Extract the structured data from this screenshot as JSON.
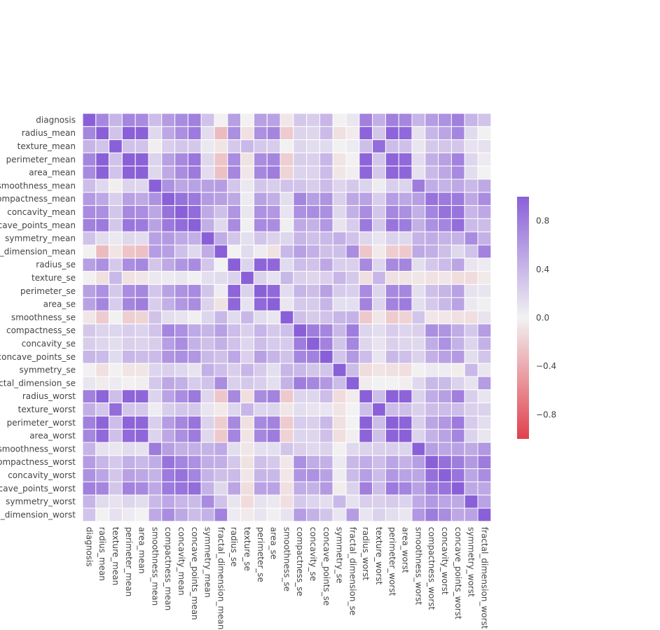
{
  "chart_data": {
    "type": "heatmap",
    "title": "",
    "xlabel": "",
    "ylabel": "",
    "grid": false,
    "legend": "colorbar-right",
    "labels": [
      "diagnosis",
      "radius_mean",
      "texture_mean",
      "perimeter_mean",
      "area_mean",
      "smoothness_mean",
      "compactness_mean",
      "concavity_mean",
      "concave_points_mean",
      "symmetry_mean",
      "fractal_dimension_mean",
      "radius_se",
      "texture_se",
      "perimeter_se",
      "area_se",
      "smoothness_se",
      "compactness_se",
      "concavity_se",
      "concave_points_se",
      "symmetry_se",
      "fractal_dimension_se",
      "radius_worst",
      "texture_worst",
      "perimeter_worst",
      "area_worst",
      "smoothness_worst",
      "compactness_worst",
      "concavity_worst",
      "concave_points_worst",
      "symmetry_worst",
      "fractal_dimension_worst"
    ],
    "values": [
      [
        1.0,
        0.73,
        0.42,
        0.74,
        0.71,
        0.36,
        0.6,
        0.7,
        0.78,
        0.33,
        -0.01,
        0.57,
        -0.01,
        0.56,
        0.55,
        -0.07,
        0.29,
        0.25,
        0.41,
        -0.01,
        0.08,
        0.78,
        0.46,
        0.78,
        0.73,
        0.42,
        0.59,
        0.66,
        0.79,
        0.42,
        0.32
      ],
      [
        0.73,
        1.0,
        0.32,
        1.0,
        0.99,
        0.17,
        0.51,
        0.68,
        0.82,
        0.15,
        -0.31,
        0.68,
        -0.1,
        0.67,
        0.74,
        -0.22,
        0.21,
        0.19,
        0.38,
        -0.1,
        -0.04,
        0.97,
        0.3,
        0.97,
        0.94,
        0.12,
        0.41,
        0.53,
        0.74,
        0.16,
        0.01
      ],
      [
        0.42,
        0.32,
        1.0,
        0.33,
        0.32,
        -0.02,
        0.24,
        0.3,
        0.29,
        0.07,
        -0.08,
        0.28,
        0.39,
        0.28,
        0.26,
        0.01,
        0.19,
        0.14,
        0.16,
        0.01,
        0.05,
        0.35,
        0.91,
        0.36,
        0.34,
        0.08,
        0.28,
        0.3,
        0.3,
        0.11,
        0.12
      ],
      [
        0.74,
        1.0,
        0.33,
        1.0,
        0.99,
        0.21,
        0.56,
        0.72,
        0.85,
        0.18,
        -0.26,
        0.69,
        -0.09,
        0.69,
        0.74,
        -0.2,
        0.25,
        0.23,
        0.41,
        -0.08,
        -0.01,
        0.97,
        0.3,
        0.97,
        0.94,
        0.15,
        0.46,
        0.56,
        0.77,
        0.19,
        0.05
      ],
      [
        0.71,
        0.99,
        0.32,
        0.99,
        1.0,
        0.18,
        0.5,
        0.69,
        0.82,
        0.15,
        -0.28,
        0.73,
        -0.07,
        0.73,
        0.8,
        -0.17,
        0.21,
        0.21,
        0.37,
        -0.07,
        -0.02,
        0.96,
        0.29,
        0.96,
        0.96,
        0.12,
        0.39,
        0.51,
        0.72,
        0.14,
        0.0
      ],
      [
        0.36,
        0.17,
        -0.02,
        0.21,
        0.18,
        1.0,
        0.66,
        0.52,
        0.55,
        0.56,
        0.58,
        0.3,
        0.07,
        0.3,
        0.25,
        0.33,
        0.32,
        0.25,
        0.38,
        0.2,
        0.28,
        0.21,
        0.04,
        0.24,
        0.21,
        0.81,
        0.47,
        0.43,
        0.5,
        0.39,
        0.5
      ],
      [
        0.6,
        0.51,
        0.24,
        0.56,
        0.5,
        0.66,
        1.0,
        0.88,
        0.83,
        0.6,
        0.57,
        0.5,
        0.05,
        0.55,
        0.46,
        0.14,
        0.74,
        0.57,
        0.64,
        0.23,
        0.51,
        0.54,
        0.25,
        0.59,
        0.51,
        0.57,
        0.87,
        0.82,
        0.82,
        0.51,
        0.69
      ],
      [
        0.7,
        0.68,
        0.3,
        0.72,
        0.69,
        0.52,
        0.88,
        1.0,
        0.92,
        0.5,
        0.34,
        0.63,
        0.08,
        0.66,
        0.62,
        0.1,
        0.67,
        0.69,
        0.68,
        0.18,
        0.45,
        0.69,
        0.3,
        0.73,
        0.68,
        0.45,
        0.75,
        0.88,
        0.86,
        0.41,
        0.51
      ],
      [
        0.78,
        0.82,
        0.29,
        0.85,
        0.82,
        0.55,
        0.83,
        0.92,
        1.0,
        0.46,
        0.17,
        0.7,
        0.02,
        0.71,
        0.69,
        0.03,
        0.49,
        0.44,
        0.62,
        0.1,
        0.26,
        0.83,
        0.29,
        0.86,
        0.81,
        0.45,
        0.67,
        0.75,
        0.91,
        0.38,
        0.37
      ],
      [
        0.33,
        0.15,
        0.07,
        0.18,
        0.15,
        0.56,
        0.6,
        0.5,
        0.46,
        1.0,
        0.48,
        0.3,
        0.13,
        0.31,
        0.22,
        0.19,
        0.42,
        0.34,
        0.39,
        0.45,
        0.33,
        0.19,
        0.09,
        0.22,
        0.18,
        0.43,
        0.47,
        0.43,
        0.43,
        0.7,
        0.44
      ],
      [
        -0.01,
        -0.31,
        -0.08,
        -0.26,
        -0.28,
        0.58,
        0.57,
        0.34,
        0.17,
        0.48,
        1.0,
        0.0,
        0.16,
        0.04,
        -0.09,
        0.4,
        0.56,
        0.45,
        0.34,
        0.35,
        0.69,
        -0.25,
        -0.05,
        -0.21,
        -0.23,
        0.5,
        0.46,
        0.35,
        0.18,
        0.33,
        0.77
      ],
      [
        0.57,
        0.68,
        0.28,
        0.69,
        0.73,
        0.3,
        0.5,
        0.63,
        0.7,
        0.3,
        0.0,
        1.0,
        0.21,
        0.97,
        0.95,
        0.16,
        0.36,
        0.33,
        0.51,
        0.24,
        0.23,
        0.72,
        0.19,
        0.72,
        0.75,
        0.14,
        0.29,
        0.38,
        0.53,
        0.09,
        0.05
      ],
      [
        -0.01,
        -0.1,
        0.39,
        -0.09,
        -0.07,
        0.07,
        0.05,
        0.08,
        0.02,
        0.13,
        0.16,
        0.21,
        1.0,
        0.22,
        0.11,
        0.4,
        0.23,
        0.19,
        0.23,
        0.41,
        0.28,
        -0.11,
        0.41,
        -0.1,
        -0.08,
        -0.07,
        -0.09,
        -0.07,
        -0.12,
        -0.13,
        -0.05
      ],
      [
        0.56,
        0.67,
        0.28,
        0.69,
        0.73,
        0.3,
        0.55,
        0.66,
        0.71,
        0.31,
        0.04,
        0.97,
        0.22,
        1.0,
        0.94,
        0.15,
        0.42,
        0.36,
        0.56,
        0.27,
        0.24,
        0.7,
        0.2,
        0.72,
        0.73,
        0.13,
        0.34,
        0.42,
        0.55,
        0.11,
        0.09
      ],
      [
        0.55,
        0.74,
        0.26,
        0.74,
        0.8,
        0.25,
        0.46,
        0.62,
        0.69,
        0.22,
        -0.09,
        0.95,
        0.11,
        0.94,
        1.0,
        0.08,
        0.28,
        0.27,
        0.42,
        0.13,
        0.13,
        0.76,
        0.2,
        0.76,
        0.81,
        0.13,
        0.28,
        0.39,
        0.54,
        0.07,
        0.02
      ],
      [
        -0.07,
        -0.22,
        0.01,
        -0.2,
        -0.17,
        0.33,
        0.14,
        0.1,
        0.03,
        0.19,
        0.4,
        0.16,
        0.4,
        0.15,
        0.08,
        1.0,
        0.34,
        0.27,
        0.33,
        0.41,
        0.43,
        -0.23,
        -0.07,
        -0.22,
        -0.18,
        0.31,
        -0.06,
        -0.06,
        -0.1,
        -0.11,
        0.1
      ],
      [
        0.29,
        0.21,
        0.19,
        0.25,
        0.21,
        0.32,
        0.74,
        0.67,
        0.49,
        0.42,
        0.56,
        0.36,
        0.23,
        0.42,
        0.28,
        0.34,
        1.0,
        0.8,
        0.74,
        0.39,
        0.8,
        0.2,
        0.14,
        0.26,
        0.2,
        0.23,
        0.68,
        0.64,
        0.48,
        0.28,
        0.59
      ],
      [
        0.25,
        0.19,
        0.14,
        0.23,
        0.21,
        0.25,
        0.57,
        0.69,
        0.44,
        0.34,
        0.45,
        0.33,
        0.19,
        0.36,
        0.27,
        0.27,
        0.8,
        1.0,
        0.77,
        0.31,
        0.73,
        0.19,
        0.1,
        0.23,
        0.19,
        0.17,
        0.48,
        0.66,
        0.44,
        0.2,
        0.44
      ],
      [
        0.41,
        0.38,
        0.16,
        0.41,
        0.37,
        0.38,
        0.64,
        0.68,
        0.62,
        0.39,
        0.34,
        0.51,
        0.23,
        0.56,
        0.42,
        0.33,
        0.74,
        0.77,
        1.0,
        0.31,
        0.61,
        0.36,
        0.09,
        0.39,
        0.34,
        0.22,
        0.45,
        0.55,
        0.6,
        0.14,
        0.31
      ],
      [
        -0.01,
        -0.1,
        0.01,
        -0.08,
        -0.07,
        0.2,
        0.23,
        0.18,
        0.1,
        0.45,
        0.35,
        0.24,
        0.41,
        0.27,
        0.13,
        0.41,
        0.39,
        0.31,
        0.31,
        1.0,
        0.37,
        -0.13,
        -0.08,
        -0.1,
        -0.11,
        -0.01,
        0.06,
        0.04,
        -0.03,
        0.39,
        0.08
      ],
      [
        0.08,
        -0.04,
        0.05,
        -0.01,
        -0.02,
        0.28,
        0.51,
        0.45,
        0.26,
        0.33,
        0.69,
        0.23,
        0.28,
        0.24,
        0.13,
        0.43,
        0.8,
        0.73,
        0.61,
        0.37,
        1.0,
        -0.04,
        -0.0,
        -0.0,
        -0.02,
        0.17,
        0.39,
        0.38,
        0.22,
        0.11,
        0.59
      ],
      [
        0.78,
        0.97,
        0.35,
        0.97,
        0.96,
        0.21,
        0.54,
        0.69,
        0.83,
        0.19,
        -0.25,
        0.72,
        -0.11,
        0.7,
        0.76,
        -0.23,
        0.2,
        0.19,
        0.36,
        -0.13,
        -0.04,
        1.0,
        0.36,
        0.99,
        0.98,
        0.22,
        0.48,
        0.57,
        0.79,
        0.24,
        0.09
      ],
      [
        0.46,
        0.3,
        0.91,
        0.3,
        0.29,
        0.04,
        0.25,
        0.3,
        0.29,
        0.09,
        -0.05,
        0.19,
        0.41,
        0.2,
        0.2,
        -0.07,
        0.14,
        0.1,
        0.09,
        -0.08,
        -0.0,
        0.36,
        1.0,
        0.37,
        0.35,
        0.23,
        0.36,
        0.37,
        0.36,
        0.23,
        0.22
      ],
      [
        0.78,
        0.97,
        0.36,
        0.97,
        0.96,
        0.24,
        0.59,
        0.73,
        0.86,
        0.22,
        -0.21,
        0.72,
        -0.1,
        0.72,
        0.76,
        -0.22,
        0.26,
        0.23,
        0.39,
        -0.1,
        -0.0,
        0.99,
        0.37,
        1.0,
        0.98,
        0.24,
        0.53,
        0.62,
        0.82,
        0.27,
        0.14
      ],
      [
        0.73,
        0.94,
        0.34,
        0.94,
        0.96,
        0.21,
        0.51,
        0.68,
        0.81,
        0.18,
        -0.23,
        0.75,
        -0.08,
        0.73,
        0.81,
        -0.18,
        0.2,
        0.19,
        0.34,
        -0.11,
        -0.02,
        0.98,
        0.35,
        0.98,
        1.0,
        0.21,
        0.44,
        0.54,
        0.75,
        0.21,
        0.08
      ],
      [
        0.42,
        0.12,
        0.08,
        0.15,
        0.12,
        0.81,
        0.57,
        0.45,
        0.45,
        0.43,
        0.5,
        0.14,
        -0.07,
        0.13,
        0.13,
        0.31,
        0.23,
        0.17,
        0.22,
        -0.01,
        0.17,
        0.22,
        0.23,
        0.24,
        0.21,
        1.0,
        0.57,
        0.52,
        0.55,
        0.49,
        0.62
      ],
      [
        0.59,
        0.41,
        0.28,
        0.46,
        0.39,
        0.47,
        0.87,
        0.75,
        0.67,
        0.47,
        0.46,
        0.29,
        -0.09,
        0.34,
        0.28,
        -0.06,
        0.68,
        0.48,
        0.45,
        0.06,
        0.39,
        0.48,
        0.36,
        0.53,
        0.44,
        0.57,
        1.0,
        0.89,
        0.8,
        0.61,
        0.81
      ],
      [
        0.66,
        0.53,
        0.3,
        0.56,
        0.51,
        0.43,
        0.82,
        0.88,
        0.75,
        0.43,
        0.35,
        0.38,
        -0.07,
        0.42,
        0.39,
        -0.06,
        0.64,
        0.66,
        0.55,
        0.04,
        0.38,
        0.57,
        0.37,
        0.62,
        0.54,
        0.52,
        0.89,
        1.0,
        0.86,
        0.53,
        0.69
      ],
      [
        0.79,
        0.74,
        0.3,
        0.77,
        0.72,
        0.5,
        0.82,
        0.86,
        0.91,
        0.43,
        0.18,
        0.53,
        -0.12,
        0.55,
        0.54,
        -0.1,
        0.48,
        0.44,
        0.6,
        -0.03,
        0.22,
        0.79,
        0.36,
        0.82,
        0.75,
        0.55,
        0.8,
        0.86,
        1.0,
        0.5,
        0.51
      ],
      [
        0.42,
        0.16,
        0.11,
        0.19,
        0.14,
        0.39,
        0.51,
        0.41,
        0.38,
        0.7,
        0.33,
        0.09,
        -0.13,
        0.11,
        0.07,
        -0.11,
        0.28,
        0.2,
        0.14,
        0.39,
        0.11,
        0.24,
        0.23,
        0.27,
        0.21,
        0.49,
        0.61,
        0.53,
        0.5,
        1.0,
        0.54
      ],
      [
        0.32,
        0.01,
        0.12,
        0.05,
        0.0,
        0.5,
        0.69,
        0.51,
        0.37,
        0.44,
        0.77,
        0.05,
        -0.05,
        0.09,
        0.02,
        0.1,
        0.59,
        0.44,
        0.31,
        0.08,
        0.59,
        0.09,
        0.22,
        0.14,
        0.08,
        0.62,
        0.81,
        0.69,
        0.51,
        0.54,
        1.0
      ]
    ],
    "vmin": -1.0,
    "vmax": 1.0,
    "colorbar": {
      "ticks": [
        0.8,
        0.4,
        0.0,
        -0.4,
        -0.8
      ],
      "tick_labels": [
        "0.8",
        "0.4",
        "0.0",
        "−0.4",
        "−0.8"
      ]
    },
    "colors": {
      "negative": "#e0404e",
      "center": "#f2f2f2",
      "positive": "#8a60d8"
    }
  }
}
